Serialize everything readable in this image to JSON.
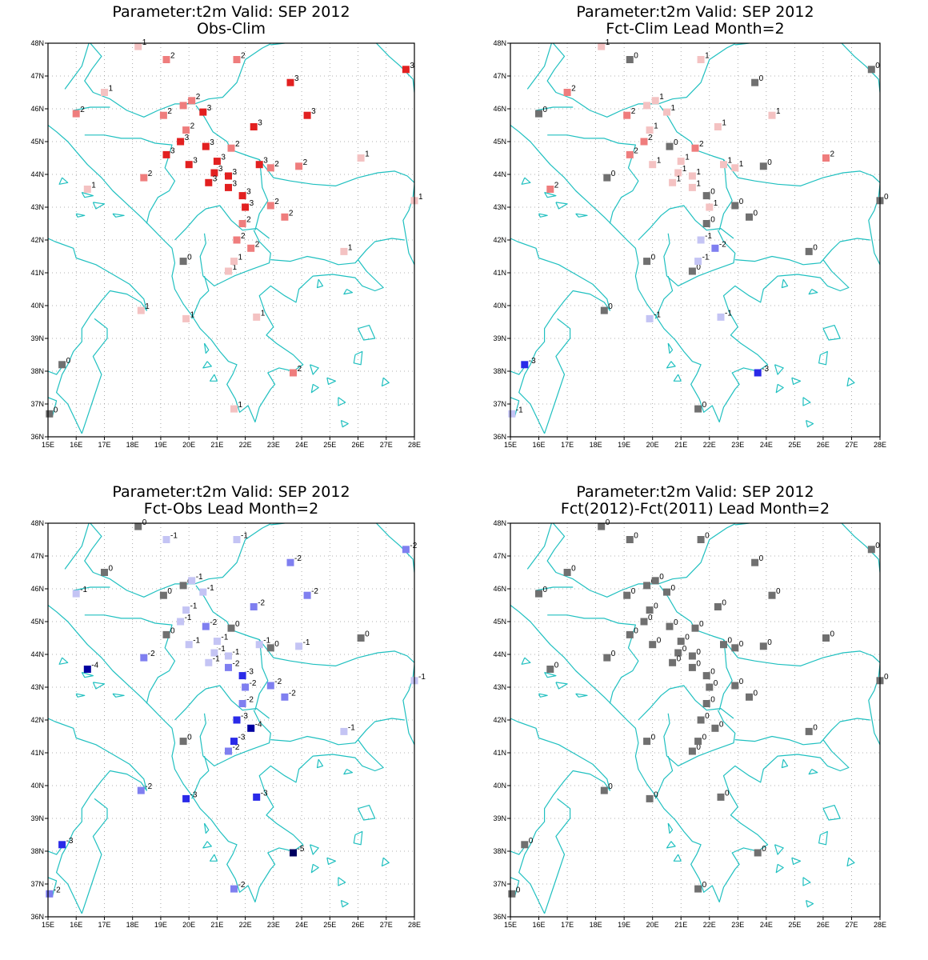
{
  "colors": {
    "coast": "#20c0c0",
    "neutral": "#707070",
    "pos1": "#f4c2c2",
    "pos2": "#ef7d7d",
    "pos3": "#e22020",
    "neg1": "#c4c4f4",
    "neg2": "#7f7ff0",
    "neg3": "#2a2ae8",
    "neg4": "#0000a0",
    "neg5": "#000060"
  },
  "axes": {
    "lon_min": 15,
    "lon_max": 28,
    "lat_min": 36,
    "lat_max": 48,
    "lon_ticks": [
      "15E",
      "16E",
      "17E",
      "18E",
      "19E",
      "20E",
      "21E",
      "22E",
      "23E",
      "24E",
      "25E",
      "26E",
      "27E",
      "28E"
    ],
    "lat_ticks": [
      "36N",
      "37N",
      "38N",
      "39N",
      "40N",
      "41N",
      "42N",
      "43N",
      "44N",
      "45N",
      "46N",
      "47N",
      "48N"
    ]
  },
  "panels": [
    {
      "title_line1": "Parameter:t2m Valid: SEP 2012",
      "title_line2": "Obs-Clim",
      "stations": [
        {
          "lon": 18.2,
          "lat": 47.9,
          "v": "1"
        },
        {
          "lon": 19.2,
          "lat": 47.5,
          "v": "2"
        },
        {
          "lon": 21.7,
          "lat": 47.5,
          "v": "2"
        },
        {
          "lon": 23.6,
          "lat": 46.8,
          "v": "3"
        },
        {
          "lon": 27.7,
          "lat": 47.2,
          "v": "3"
        },
        {
          "lon": 17.0,
          "lat": 46.5,
          "v": "1"
        },
        {
          "lon": 16.0,
          "lat": 45.85,
          "v": "2"
        },
        {
          "lon": 19.1,
          "lat": 45.8,
          "v": "2"
        },
        {
          "lon": 19.8,
          "lat": 46.1,
          "v": "2"
        },
        {
          "lon": 20.1,
          "lat": 46.25,
          "v": "2"
        },
        {
          "lon": 20.5,
          "lat": 45.9,
          "v": "3"
        },
        {
          "lon": 24.2,
          "lat": 45.8,
          "v": "3"
        },
        {
          "lon": 19.9,
          "lat": 45.35,
          "v": "2"
        },
        {
          "lon": 22.3,
          "lat": 45.45,
          "v": "3"
        },
        {
          "lon": 19.7,
          "lat": 45.0,
          "v": "3"
        },
        {
          "lon": 20.6,
          "lat": 44.85,
          "v": "3"
        },
        {
          "lon": 21.5,
          "lat": 44.8,
          "v": "2"
        },
        {
          "lon": 19.2,
          "lat": 44.6,
          "v": "3"
        },
        {
          "lon": 20.0,
          "lat": 44.3,
          "v": "3"
        },
        {
          "lon": 21.0,
          "lat": 44.4,
          "v": "3"
        },
        {
          "lon": 22.5,
          "lat": 44.3,
          "v": "3"
        },
        {
          "lon": 23.9,
          "lat": 44.25,
          "v": "2"
        },
        {
          "lon": 26.1,
          "lat": 44.5,
          "v": "1"
        },
        {
          "lon": 18.4,
          "lat": 43.9,
          "v": "2"
        },
        {
          "lon": 20.9,
          "lat": 44.05,
          "v": "3"
        },
        {
          "lon": 21.4,
          "lat": 43.95,
          "v": "3"
        },
        {
          "lon": 22.9,
          "lat": 44.2,
          "v": "2"
        },
        {
          "lon": 16.4,
          "lat": 43.55,
          "v": "1"
        },
        {
          "lon": 20.7,
          "lat": 43.75,
          "v": "3"
        },
        {
          "lon": 21.4,
          "lat": 43.6,
          "v": "3"
        },
        {
          "lon": 21.9,
          "lat": 43.35,
          "v": "3"
        },
        {
          "lon": 22.0,
          "lat": 43.0,
          "v": "3"
        },
        {
          "lon": 22.9,
          "lat": 43.05,
          "v": "2"
        },
        {
          "lon": 28.0,
          "lat": 43.2,
          "v": "1"
        },
        {
          "lon": 21.9,
          "lat": 42.5,
          "v": "2"
        },
        {
          "lon": 23.4,
          "lat": 42.7,
          "v": "2"
        },
        {
          "lon": 21.7,
          "lat": 42.0,
          "v": "2"
        },
        {
          "lon": 22.2,
          "lat": 41.75,
          "v": "2"
        },
        {
          "lon": 25.5,
          "lat": 41.65,
          "v": "1"
        },
        {
          "lon": 19.8,
          "lat": 41.35,
          "v": "0"
        },
        {
          "lon": 21.4,
          "lat": 41.05,
          "v": "1"
        },
        {
          "lon": 21.6,
          "lat": 41.35,
          "v": "1"
        },
        {
          "lon": 18.3,
          "lat": 39.85,
          "v": "1"
        },
        {
          "lon": 19.9,
          "lat": 39.6,
          "v": "1"
        },
        {
          "lon": 22.4,
          "lat": 39.65,
          "v": "1"
        },
        {
          "lon": 15.5,
          "lat": 38.2,
          "v": "0"
        },
        {
          "lon": 23.7,
          "lat": 37.95,
          "v": "2"
        },
        {
          "lon": 15.05,
          "lat": 36.7,
          "v": "0"
        },
        {
          "lon": 21.6,
          "lat": 36.85,
          "v": "1"
        }
      ]
    },
    {
      "title_line1": "Parameter:t2m Valid: SEP 2012",
      "title_line2": "Fct-Clim Lead Month=2",
      "stations": [
        {
          "lon": 18.2,
          "lat": 47.9,
          "v": "1"
        },
        {
          "lon": 19.2,
          "lat": 47.5,
          "v": "0"
        },
        {
          "lon": 21.7,
          "lat": 47.5,
          "v": "1"
        },
        {
          "lon": 23.6,
          "lat": 46.8,
          "v": "0"
        },
        {
          "lon": 27.7,
          "lat": 47.2,
          "v": "0"
        },
        {
          "lon": 17.0,
          "lat": 46.5,
          "v": "2"
        },
        {
          "lon": 16.0,
          "lat": 45.85,
          "v": "0"
        },
        {
          "lon": 19.1,
          "lat": 45.8,
          "v": "2"
        },
        {
          "lon": 19.8,
          "lat": 46.1,
          "v": "1"
        },
        {
          "lon": 20.1,
          "lat": 46.25,
          "v": "1"
        },
        {
          "lon": 20.5,
          "lat": 45.9,
          "v": "1"
        },
        {
          "lon": 24.2,
          "lat": 45.8,
          "v": "1"
        },
        {
          "lon": 19.9,
          "lat": 45.35,
          "v": "1"
        },
        {
          "lon": 22.3,
          "lat": 45.45,
          "v": "1"
        },
        {
          "lon": 19.7,
          "lat": 45.0,
          "v": "2"
        },
        {
          "lon": 20.6,
          "lat": 44.85,
          "v": "0"
        },
        {
          "lon": 21.5,
          "lat": 44.8,
          "v": "2"
        },
        {
          "lon": 19.2,
          "lat": 44.6,
          "v": "2"
        },
        {
          "lon": 20.0,
          "lat": 44.3,
          "v": "1"
        },
        {
          "lon": 21.0,
          "lat": 44.4,
          "v": "1"
        },
        {
          "lon": 22.5,
          "lat": 44.3,
          "v": "1"
        },
        {
          "lon": 23.9,
          "lat": 44.25,
          "v": "0"
        },
        {
          "lon": 26.1,
          "lat": 44.5,
          "v": "2"
        },
        {
          "lon": 18.4,
          "lat": 43.9,
          "v": "0"
        },
        {
          "lon": 20.9,
          "lat": 44.05,
          "v": "1"
        },
        {
          "lon": 21.4,
          "lat": 43.95,
          "v": "1"
        },
        {
          "lon": 22.9,
          "lat": 44.2,
          "v": "1"
        },
        {
          "lon": 16.4,
          "lat": 43.55,
          "v": "2"
        },
        {
          "lon": 20.7,
          "lat": 43.75,
          "v": "1"
        },
        {
          "lon": 21.4,
          "lat": 43.6,
          "v": "1"
        },
        {
          "lon": 21.9,
          "lat": 43.35,
          "v": "0"
        },
        {
          "lon": 22.0,
          "lat": 43.0,
          "v": "1"
        },
        {
          "lon": 22.9,
          "lat": 43.05,
          "v": "0"
        },
        {
          "lon": 28.0,
          "lat": 43.2,
          "v": "0"
        },
        {
          "lon": 21.9,
          "lat": 42.5,
          "v": "0"
        },
        {
          "lon": 23.4,
          "lat": 42.7,
          "v": "0"
        },
        {
          "lon": 21.7,
          "lat": 42.0,
          "v": "-1"
        },
        {
          "lon": 22.2,
          "lat": 41.75,
          "v": "-2"
        },
        {
          "lon": 25.5,
          "lat": 41.65,
          "v": "0"
        },
        {
          "lon": 19.8,
          "lat": 41.35,
          "v": "0"
        },
        {
          "lon": 21.4,
          "lat": 41.05,
          "v": "0"
        },
        {
          "lon": 21.6,
          "lat": 41.35,
          "v": "-1"
        },
        {
          "lon": 18.3,
          "lat": 39.85,
          "v": "0"
        },
        {
          "lon": 19.9,
          "lat": 39.6,
          "v": "-1"
        },
        {
          "lon": 22.4,
          "lat": 39.65,
          "v": "-1"
        },
        {
          "lon": 15.5,
          "lat": 38.2,
          "v": "-3"
        },
        {
          "lon": 23.7,
          "lat": 37.95,
          "v": "-3"
        },
        {
          "lon": 15.05,
          "lat": 36.7,
          "v": "-1"
        },
        {
          "lon": 21.6,
          "lat": 36.85,
          "v": "0"
        }
      ]
    },
    {
      "title_line1": "Parameter:t2m Valid: SEP 2012",
      "title_line2": "Fct-Obs Lead Month=2",
      "stations": [
        {
          "lon": 18.2,
          "lat": 47.9,
          "v": "0"
        },
        {
          "lon": 19.2,
          "lat": 47.5,
          "v": "-1"
        },
        {
          "lon": 21.7,
          "lat": 47.5,
          "v": "-1"
        },
        {
          "lon": 23.6,
          "lat": 46.8,
          "v": "-2"
        },
        {
          "lon": 27.7,
          "lat": 47.2,
          "v": "-2"
        },
        {
          "lon": 17.0,
          "lat": 46.5,
          "v": "0"
        },
        {
          "lon": 16.0,
          "lat": 45.85,
          "v": "-1"
        },
        {
          "lon": 19.1,
          "lat": 45.8,
          "v": "0"
        },
        {
          "lon": 19.8,
          "lat": 46.1,
          "v": "0"
        },
        {
          "lon": 20.1,
          "lat": 46.25,
          "v": "-1"
        },
        {
          "lon": 20.5,
          "lat": 45.9,
          "v": "-1"
        },
        {
          "lon": 24.2,
          "lat": 45.8,
          "v": "-2"
        },
        {
          "lon": 19.9,
          "lat": 45.35,
          "v": "-1"
        },
        {
          "lon": 22.3,
          "lat": 45.45,
          "v": "-2"
        },
        {
          "lon": 19.7,
          "lat": 45.0,
          "v": "-1"
        },
        {
          "lon": 20.6,
          "lat": 44.85,
          "v": "-2"
        },
        {
          "lon": 21.5,
          "lat": 44.8,
          "v": "0"
        },
        {
          "lon": 19.2,
          "lat": 44.6,
          "v": "0"
        },
        {
          "lon": 20.0,
          "lat": 44.3,
          "v": "-1"
        },
        {
          "lon": 21.0,
          "lat": 44.4,
          "v": "-1"
        },
        {
          "lon": 22.5,
          "lat": 44.3,
          "v": "-1"
        },
        {
          "lon": 23.9,
          "lat": 44.25,
          "v": "-1"
        },
        {
          "lon": 26.1,
          "lat": 44.5,
          "v": "0"
        },
        {
          "lon": 18.4,
          "lat": 43.9,
          "v": "-2"
        },
        {
          "lon": 20.9,
          "lat": 44.05,
          "v": "-1"
        },
        {
          "lon": 21.4,
          "lat": 43.95,
          "v": "-1"
        },
        {
          "lon": 22.9,
          "lat": 44.2,
          "v": "0"
        },
        {
          "lon": 16.4,
          "lat": 43.55,
          "v": "-4"
        },
        {
          "lon": 20.7,
          "lat": 43.75,
          "v": "-1"
        },
        {
          "lon": 21.4,
          "lat": 43.6,
          "v": "-2"
        },
        {
          "lon": 21.9,
          "lat": 43.35,
          "v": "-3"
        },
        {
          "lon": 22.0,
          "lat": 43.0,
          "v": "-2"
        },
        {
          "lon": 22.9,
          "lat": 43.05,
          "v": "-2"
        },
        {
          "lon": 28.0,
          "lat": 43.2,
          "v": "-1"
        },
        {
          "lon": 21.9,
          "lat": 42.5,
          "v": "-2"
        },
        {
          "lon": 23.4,
          "lat": 42.7,
          "v": "-2"
        },
        {
          "lon": 21.7,
          "lat": 42.0,
          "v": "-3"
        },
        {
          "lon": 22.2,
          "lat": 41.75,
          "v": "-4"
        },
        {
          "lon": 25.5,
          "lat": 41.65,
          "v": "-1"
        },
        {
          "lon": 19.8,
          "lat": 41.35,
          "v": "0"
        },
        {
          "lon": 21.4,
          "lat": 41.05,
          "v": "-2"
        },
        {
          "lon": 21.6,
          "lat": 41.35,
          "v": "-3"
        },
        {
          "lon": 18.3,
          "lat": 39.85,
          "v": "-2"
        },
        {
          "lon": 19.9,
          "lat": 39.6,
          "v": "-3"
        },
        {
          "lon": 22.4,
          "lat": 39.65,
          "v": "-3"
        },
        {
          "lon": 15.5,
          "lat": 38.2,
          "v": "-3"
        },
        {
          "lon": 23.7,
          "lat": 37.95,
          "v": "-5"
        },
        {
          "lon": 15.05,
          "lat": 36.7,
          "v": "-2"
        },
        {
          "lon": 21.6,
          "lat": 36.85,
          "v": "-2"
        }
      ]
    },
    {
      "title_line1": "Parameter:t2m Valid: SEP 2012",
      "title_line2": "Fct(2012)-Fct(2011) Lead Month=2",
      "stations": [
        {
          "lon": 18.2,
          "lat": 47.9,
          "v": "0"
        },
        {
          "lon": 19.2,
          "lat": 47.5,
          "v": "0"
        },
        {
          "lon": 21.7,
          "lat": 47.5,
          "v": "0"
        },
        {
          "lon": 23.6,
          "lat": 46.8,
          "v": "0"
        },
        {
          "lon": 27.7,
          "lat": 47.2,
          "v": "0"
        },
        {
          "lon": 17.0,
          "lat": 46.5,
          "v": "0"
        },
        {
          "lon": 16.0,
          "lat": 45.85,
          "v": "0"
        },
        {
          "lon": 19.1,
          "lat": 45.8,
          "v": "0"
        },
        {
          "lon": 19.8,
          "lat": 46.1,
          "v": "0"
        },
        {
          "lon": 20.1,
          "lat": 46.25,
          "v": "0"
        },
        {
          "lon": 20.5,
          "lat": 45.9,
          "v": "0"
        },
        {
          "lon": 24.2,
          "lat": 45.8,
          "v": "0"
        },
        {
          "lon": 19.9,
          "lat": 45.35,
          "v": "0"
        },
        {
          "lon": 22.3,
          "lat": 45.45,
          "v": "0"
        },
        {
          "lon": 19.7,
          "lat": 45.0,
          "v": "0"
        },
        {
          "lon": 20.6,
          "lat": 44.85,
          "v": "0"
        },
        {
          "lon": 21.5,
          "lat": 44.8,
          "v": "0"
        },
        {
          "lon": 19.2,
          "lat": 44.6,
          "v": "0"
        },
        {
          "lon": 20.0,
          "lat": 44.3,
          "v": "0"
        },
        {
          "lon": 21.0,
          "lat": 44.4,
          "v": "0"
        },
        {
          "lon": 22.5,
          "lat": 44.3,
          "v": "0"
        },
        {
          "lon": 23.9,
          "lat": 44.25,
          "v": "0"
        },
        {
          "lon": 26.1,
          "lat": 44.5,
          "v": "0"
        },
        {
          "lon": 18.4,
          "lat": 43.9,
          "v": "0"
        },
        {
          "lon": 20.9,
          "lat": 44.05,
          "v": "0"
        },
        {
          "lon": 21.4,
          "lat": 43.95,
          "v": "0"
        },
        {
          "lon": 22.9,
          "lat": 44.2,
          "v": "0"
        },
        {
          "lon": 16.4,
          "lat": 43.55,
          "v": "0"
        },
        {
          "lon": 20.7,
          "lat": 43.75,
          "v": "0"
        },
        {
          "lon": 21.4,
          "lat": 43.6,
          "v": "0"
        },
        {
          "lon": 21.9,
          "lat": 43.35,
          "v": "0"
        },
        {
          "lon": 22.0,
          "lat": 43.0,
          "v": "0"
        },
        {
          "lon": 22.9,
          "lat": 43.05,
          "v": "0"
        },
        {
          "lon": 28.0,
          "lat": 43.2,
          "v": "0"
        },
        {
          "lon": 21.9,
          "lat": 42.5,
          "v": "0"
        },
        {
          "lon": 23.4,
          "lat": 42.7,
          "v": "0"
        },
        {
          "lon": 21.7,
          "lat": 42.0,
          "v": "0"
        },
        {
          "lon": 22.2,
          "lat": 41.75,
          "v": "0"
        },
        {
          "lon": 25.5,
          "lat": 41.65,
          "v": "0"
        },
        {
          "lon": 19.8,
          "lat": 41.35,
          "v": "0"
        },
        {
          "lon": 21.4,
          "lat": 41.05,
          "v": "0"
        },
        {
          "lon": 21.6,
          "lat": 41.35,
          "v": "0"
        },
        {
          "lon": 18.3,
          "lat": 39.85,
          "v": "0"
        },
        {
          "lon": 19.9,
          "lat": 39.6,
          "v": "0"
        },
        {
          "lon": 22.4,
          "lat": 39.65,
          "v": "0"
        },
        {
          "lon": 15.5,
          "lat": 38.2,
          "v": "0"
        },
        {
          "lon": 23.7,
          "lat": 37.95,
          "v": "0"
        },
        {
          "lon": 15.05,
          "lat": 36.7,
          "v": "0"
        },
        {
          "lon": 21.6,
          "lat": 36.85,
          "v": "0"
        }
      ]
    }
  ]
}
